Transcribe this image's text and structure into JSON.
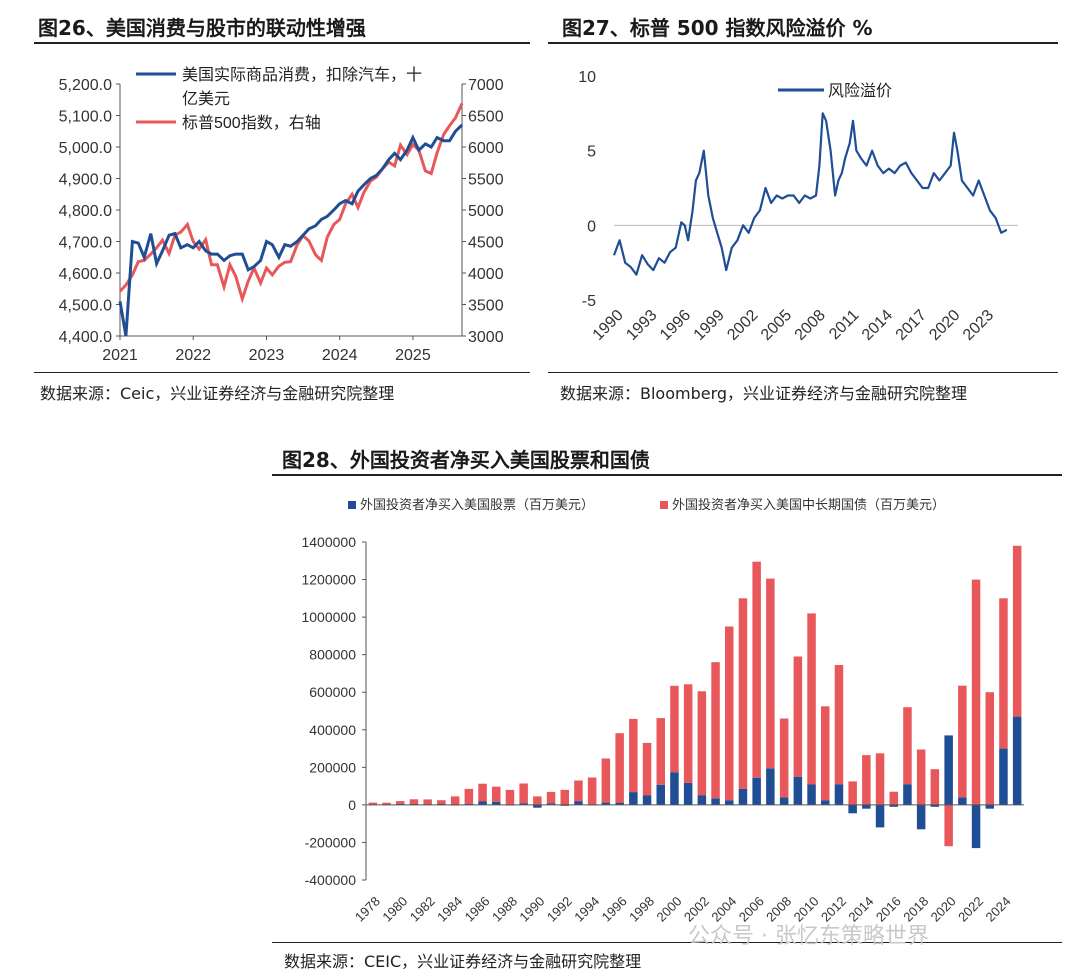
{
  "panels": {
    "fig26": {
      "title": "图26、美国消费与股市的联动性增强",
      "source": "数据来源：Ceic，兴业证券经济与金融研究院整理"
    },
    "fig27": {
      "title": "图27、标普 500 指数风险溢价  %",
      "source": "数据来源：Bloomberg，兴业证券经济与金融研究院整理"
    },
    "fig28": {
      "title": "图28、外国投资者净买入美国股票和国债",
      "source": "数据来源：CEIC，兴业证券经济与金融研究院整理"
    }
  },
  "footer": {
    "watermark": "公众号 · 张忆东策略世界"
  },
  "chart_data": [
    {
      "id": "fig26",
      "type": "line",
      "title": "图26、美国消费与股市的联动性增强",
      "xlabel": "",
      "ylabel": "",
      "y2label": "",
      "ylim": [
        4400,
        5200
      ],
      "y2lim": [
        3000,
        7000
      ],
      "yticks": [
        "4,400.0",
        "4,500.0",
        "4,600.0",
        "4,700.0",
        "4,800.0",
        "4,900.0",
        "5,000.0",
        "5,100.0",
        "5,200.0"
      ],
      "y2ticks": [
        "3000",
        "3500",
        "4000",
        "4500",
        "5000",
        "5500",
        "6000",
        "6500",
        "7000"
      ],
      "xticks": [
        "2021",
        "2022",
        "2023",
        "2024",
        "2025"
      ],
      "xlim": [
        2021.0,
        2025.67
      ],
      "legend_position": "top-left",
      "colors": {
        "consumption": "#1f4e95",
        "sp500": "#e8575a"
      },
      "series": [
        {
          "name": "美国实际商品消费，扣除汽车，十亿美元",
          "axis": "left",
          "x": [
            2021.0,
            2021.08,
            2021.17,
            2021.25,
            2021.33,
            2021.42,
            2021.5,
            2021.58,
            2021.67,
            2021.75,
            2021.83,
            2021.92,
            2022.0,
            2022.08,
            2022.17,
            2022.25,
            2022.33,
            2022.42,
            2022.5,
            2022.58,
            2022.67,
            2022.75,
            2022.83,
            2022.92,
            2023.0,
            2023.08,
            2023.17,
            2023.25,
            2023.33,
            2023.42,
            2023.5,
            2023.58,
            2023.67,
            2023.75,
            2023.83,
            2023.92,
            2024.0,
            2024.08,
            2024.17,
            2024.25,
            2024.33,
            2024.42,
            2024.5,
            2024.58,
            2024.67,
            2024.75,
            2024.83,
            2024.92,
            2025.0,
            2025.08,
            2025.17,
            2025.25,
            2025.33,
            2025.42,
            2025.5,
            2025.58,
            2025.67
          ],
          "values": [
            4510,
            4380,
            4700,
            4695,
            4650,
            4725,
            4630,
            4670,
            4720,
            4725,
            4680,
            4690,
            4680,
            4700,
            4670,
            4660,
            4660,
            4640,
            4655,
            4660,
            4660,
            4610,
            4620,
            4640,
            4700,
            4690,
            4650,
            4690,
            4685,
            4700,
            4720,
            4740,
            4750,
            4770,
            4780,
            4800,
            4820,
            4830,
            4820,
            4860,
            4880,
            4900,
            4910,
            4930,
            4960,
            4980,
            4960,
            4990,
            5030,
            4990,
            5010,
            5000,
            5030,
            5020,
            5020,
            5050,
            5070
          ]
        },
        {
          "name": "标普500指数，右轴",
          "axis": "right",
          "x": [
            2021.0,
            2021.08,
            2021.17,
            2021.25,
            2021.33,
            2021.42,
            2021.5,
            2021.58,
            2021.67,
            2021.75,
            2021.83,
            2021.92,
            2022.0,
            2022.08,
            2022.17,
            2022.25,
            2022.33,
            2022.42,
            2022.5,
            2022.58,
            2022.67,
            2022.75,
            2022.83,
            2022.92,
            2023.0,
            2023.08,
            2023.17,
            2023.25,
            2023.33,
            2023.42,
            2023.5,
            2023.58,
            2023.67,
            2023.75,
            2023.83,
            2023.92,
            2024.0,
            2024.08,
            2024.17,
            2024.25,
            2024.33,
            2024.42,
            2024.5,
            2024.58,
            2024.67,
            2024.75,
            2024.83,
            2024.92,
            2025.0,
            2025.08,
            2025.17,
            2025.25,
            2025.33,
            2025.42,
            2025.5,
            2025.58,
            2025.67
          ],
          "values": [
            3710,
            3810,
            3970,
            4180,
            4200,
            4300,
            4400,
            4520,
            4310,
            4600,
            4650,
            4770,
            4500,
            4380,
            4530,
            4130,
            4130,
            3780,
            4130,
            3950,
            3590,
            3870,
            4080,
            3840,
            4080,
            3970,
            4110,
            4170,
            4180,
            4450,
            4590,
            4510,
            4290,
            4200,
            4570,
            4770,
            4850,
            5100,
            5250,
            5040,
            5280,
            5460,
            5520,
            5650,
            5760,
            5700,
            6030,
            5880,
            6040,
            5950,
            5620,
            5580,
            5910,
            6200,
            6340,
            6460,
            6690
          ]
        }
      ]
    },
    {
      "id": "fig27",
      "type": "line",
      "title": "图27、标普 500 指数风险溢价  %",
      "xlabel": "",
      "ylabel": "",
      "ylim": [
        -5,
        10
      ],
      "yticks": [
        "10",
        "5",
        "0",
        "-5"
      ],
      "xticks": [
        "1990",
        "1993",
        "1996",
        "1999",
        "2002",
        "2005",
        "2008",
        "2011",
        "2014",
        "2017",
        "2020",
        "2023"
      ],
      "xlim": [
        1990,
        2026
      ],
      "legend_position": "top-center",
      "colors": {
        "premium": "#1f4e95"
      },
      "series": [
        {
          "name": "风险溢价",
          "x": [
            1990,
            1990.5,
            1991,
            1991.5,
            1992,
            1992.5,
            1993,
            1993.5,
            1994,
            1994.5,
            1995,
            1995.5,
            1996,
            1996.3,
            1996.6,
            1997,
            1997.3,
            1997.6,
            1998,
            1998.4,
            1998.8,
            1999.2,
            1999.6,
            2000,
            2000.5,
            2001,
            2001.5,
            2002,
            2002.5,
            2003,
            2003.5,
            2004,
            2004.5,
            2005,
            2005.5,
            2006,
            2006.5,
            2007,
            2007.5,
            2008,
            2008.3,
            2008.6,
            2008.9,
            2009.3,
            2009.7,
            2010,
            2010.3,
            2010.6,
            2011,
            2011.3,
            2011.6,
            2012,
            2012.5,
            2013,
            2013.5,
            2014,
            2014.5,
            2015,
            2015.5,
            2016,
            2016.5,
            2017,
            2017.5,
            2018,
            2018.5,
            2019,
            2019.5,
            2020,
            2020.3,
            2020.6,
            2021,
            2021.5,
            2022,
            2022.5,
            2023,
            2023.5,
            2024,
            2024.5,
            2025
          ],
          "values": [
            -2.0,
            -1.0,
            -2.5,
            -2.8,
            -3.3,
            -2.0,
            -2.6,
            -3.0,
            -2.2,
            -2.5,
            -1.8,
            -1.5,
            0.2,
            0.0,
            -1.0,
            1.0,
            3.0,
            3.5,
            5.0,
            2.0,
            0.5,
            -0.5,
            -1.5,
            -3.0,
            -1.5,
            -1.0,
            0.0,
            -0.5,
            0.5,
            1.0,
            2.5,
            1.5,
            2.0,
            1.8,
            2.0,
            2.0,
            1.5,
            2.0,
            1.8,
            2.0,
            4.0,
            7.5,
            7.0,
            5.0,
            2.0,
            3.0,
            3.5,
            4.5,
            5.5,
            7.0,
            5.0,
            4.5,
            4.0,
            5.0,
            4.0,
            3.5,
            3.8,
            3.5,
            4.0,
            4.2,
            3.5,
            3.0,
            2.5,
            2.5,
            3.5,
            3.0,
            3.5,
            4.0,
            6.2,
            5.0,
            3.0,
            2.5,
            2.0,
            3.0,
            2.0,
            1.0,
            0.5,
            -0.5,
            -0.3
          ]
        }
      ]
    },
    {
      "id": "fig28",
      "type": "bar",
      "stacked": true,
      "title": "图28、外国投资者净买入美国股票和国债",
      "xlabel": "",
      "ylabel": "",
      "ylim": [
        -400000,
        1400000
      ],
      "yticks": [
        "1400000",
        "1200000",
        "1000000",
        "800000",
        "600000",
        "400000",
        "200000",
        "0",
        "-200000",
        "-400000"
      ],
      "xtick_labels": [
        "1978",
        "1980",
        "1982",
        "1984",
        "1986",
        "1988",
        "1990",
        "1992",
        "1994",
        "1996",
        "1998",
        "2000",
        "2002",
        "2004",
        "2006",
        "2008",
        "2010",
        "2012",
        "2014",
        "2016",
        "2018",
        "2020",
        "2022",
        "2024"
      ],
      "legend_position": "top",
      "categories": [
        "1978",
        "1979",
        "1980",
        "1981",
        "1982",
        "1983",
        "1984",
        "1985",
        "1986",
        "1987",
        "1988",
        "1989",
        "1990",
        "1991",
        "1992",
        "1993",
        "1994",
        "1995",
        "1996",
        "1997",
        "1998",
        "1999",
        "2000",
        "2001",
        "2002",
        "2003",
        "2004",
        "2005",
        "2006",
        "2007",
        "2008",
        "2009",
        "2010",
        "2011",
        "2012",
        "2013",
        "2014",
        "2015",
        "2016",
        "2017",
        "2018",
        "2019",
        "2020",
        "2021",
        "2022",
        "2023",
        "2024",
        "2025"
      ],
      "colors": {
        "stocks": "#1f4e95",
        "treasuries": "#e8575a"
      },
      "series": [
        {
          "name": "外国投资者净买入美国股票（百万美元）",
          "values": [
            2000,
            1500,
            5000,
            5000,
            4000,
            5000,
            -2000,
            5000,
            18000,
            17000,
            -1000,
            9000,
            -15000,
            9000,
            -5000,
            20000,
            1000,
            12000,
            12000,
            68000,
            50000,
            107000,
            174000,
            117000,
            50000,
            35000,
            25000,
            85000,
            145000,
            195000,
            40000,
            150000,
            110000,
            25000,
            110000,
            -45000,
            -20000,
            -120000,
            -10000,
            110000,
            -130000,
            -10000,
            370000,
            40000,
            -230000,
            -20000,
            300000,
            470000
          ]
        },
        {
          "name": "外国投资者净买入美国中长期国债（百万美元）",
          "values": [
            10000,
            10000,
            15000,
            25000,
            25000,
            20000,
            45000,
            80000,
            95000,
            80000,
            80000,
            105000,
            45000,
            60000,
            80000,
            110000,
            145000,
            235000,
            370000,
            390000,
            280000,
            355000,
            460000,
            525000,
            555000,
            725000,
            925000,
            1015000,
            1150000,
            1010000,
            420000,
            640000,
            910000,
            500000,
            635000,
            125000,
            265000,
            275000,
            70000,
            410000,
            295000,
            190000,
            -220000,
            595000,
            1200000,
            600000,
            800000,
            910000
          ]
        }
      ]
    }
  ]
}
